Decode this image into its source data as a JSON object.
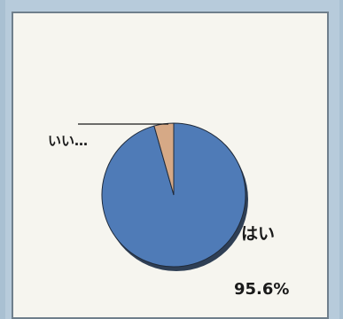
{
  "chart_data": {
    "type": "pie",
    "title": "",
    "slices": [
      {
        "label": "はい",
        "value": 95.6,
        "display_label": "はい",
        "value_label": "95.6%",
        "color": "#4f7bb7"
      },
      {
        "label": "いいえ",
        "value": 4.4,
        "display_label": "いい…",
        "color": "#d6a986"
      }
    ],
    "legend": "none",
    "shadow": true
  }
}
